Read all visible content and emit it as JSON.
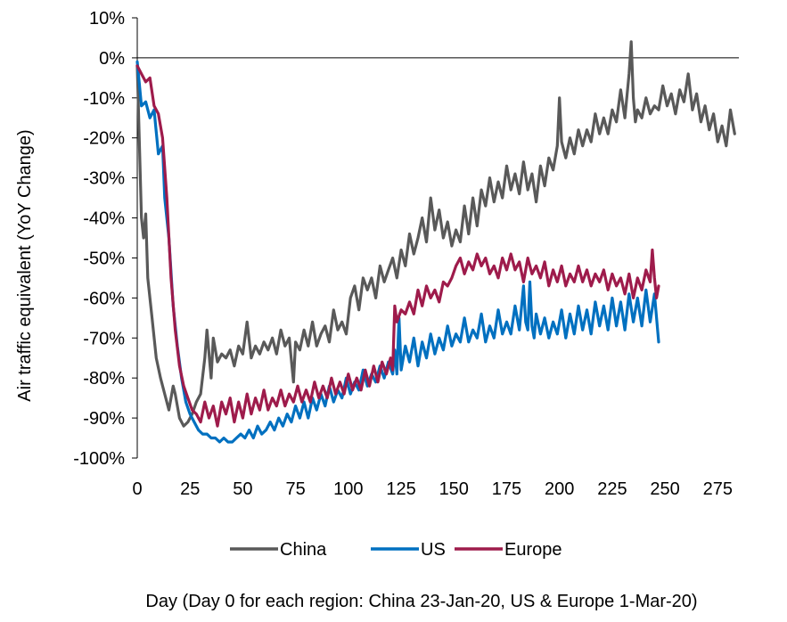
{
  "chart_data": {
    "type": "line",
    "title": "",
    "xlabel": "Day (Day 0 for each region: China 23-Jan-20, US & Europe 1-Mar-20)",
    "ylabel": "Air traffic equivalent  (YoY Change)",
    "xlim": [
      0,
      285
    ],
    "ylim": [
      -100,
      10
    ],
    "x_ticks": [
      0,
      25,
      50,
      75,
      100,
      125,
      150,
      175,
      200,
      225,
      250,
      275
    ],
    "y_ticks": [
      10,
      0,
      -10,
      -20,
      -30,
      -40,
      -50,
      -60,
      -70,
      -80,
      -90,
      -100
    ],
    "y_tick_labels": [
      "10%",
      "0%",
      "-10%",
      "-20%",
      "-30%",
      "-40%",
      "-50%",
      "-60%",
      "-70%",
      "-80%",
      "-90%",
      "-100%"
    ],
    "x_tick_labels": [
      "0",
      "25",
      "50",
      "75",
      "100",
      "125",
      "150",
      "175",
      "200",
      "225",
      "250",
      "275"
    ],
    "grid": false,
    "zero_line": true,
    "legend_position": "bottom",
    "series": [
      {
        "name": "China",
        "color": "#595959",
        "x": [
          0,
          2,
          3,
          4,
          5,
          7,
          9,
          11,
          13,
          15,
          17,
          18,
          20,
          22,
          24,
          26,
          28,
          30,
          32,
          33,
          35,
          36,
          38,
          40,
          42,
          44,
          46,
          48,
          50,
          52,
          54,
          56,
          58,
          60,
          62,
          64,
          66,
          68,
          70,
          72,
          74,
          75,
          77,
          79,
          81,
          83,
          85,
          87,
          89,
          91,
          93,
          95,
          97,
          99,
          101,
          103,
          105,
          107,
          109,
          111,
          113,
          115,
          117,
          119,
          121,
          123,
          125,
          127,
          129,
          131,
          133,
          135,
          137,
          139,
          141,
          143,
          145,
          147,
          149,
          151,
          153,
          155,
          157,
          159,
          161,
          163,
          165,
          167,
          169,
          171,
          173,
          175,
          177,
          179,
          181,
          183,
          185,
          187,
          189,
          191,
          193,
          195,
          197,
          199,
          200,
          201,
          203,
          205,
          207,
          209,
          211,
          213,
          215,
          217,
          219,
          221,
          223,
          225,
          227,
          229,
          231,
          233,
          234,
          235,
          236,
          237,
          239,
          241,
          243,
          245,
          247,
          249,
          251,
          253,
          255,
          257,
          259,
          261,
          263,
          265,
          267,
          269,
          271,
          273,
          275,
          277,
          279,
          281,
          283
        ],
        "values": [
          -2,
          -40,
          -45,
          -39,
          -55,
          -65,
          -75,
          -80,
          -84,
          -88,
          -82,
          -84,
          -90,
          -92,
          -91,
          -89,
          -86,
          -84,
          -75,
          -68,
          -80,
          -70,
          -76,
          -74,
          -75,
          -73,
          -77,
          -72,
          -74,
          -66,
          -75,
          -72,
          -74,
          -71,
          -73,
          -70,
          -74,
          -68,
          -72,
          -70,
          -81,
          -71,
          -73,
          -68,
          -72,
          -66,
          -72,
          -69,
          -67,
          -71,
          -63,
          -68,
          -66,
          -69,
          -60,
          -57,
          -63,
          -55,
          -58,
          -55,
          -60,
          -52,
          -56,
          -53,
          -50,
          -55,
          -48,
          -52,
          -44,
          -49,
          -45,
          -40,
          -46,
          -35,
          -43,
          -38,
          -45,
          -41,
          -47,
          -43,
          -46,
          -37,
          -44,
          -35,
          -42,
          -33,
          -37,
          -30,
          -36,
          -31,
          -35,
          -27,
          -33,
          -29,
          -34,
          -26,
          -33,
          -29,
          -36,
          -27,
          -32,
          -25,
          -28,
          -22,
          -10,
          -21,
          -25,
          -20,
          -24,
          -18,
          -22,
          -18,
          -21,
          -14,
          -19,
          -15,
          -19,
          -13,
          -16,
          -8,
          -15,
          -4,
          4,
          -10,
          -16,
          -13,
          -15,
          -10,
          -14,
          -12,
          -13,
          -7,
          -12,
          -9,
          -14,
          -8,
          -11,
          -4,
          -13,
          -9,
          -16,
          -12,
          -18,
          -14,
          -21,
          -17,
          -22,
          -13,
          -19
        ]
      },
      {
        "name": "US",
        "color": "#0070c0",
        "x": [
          0,
          2,
          4,
          6,
          8,
          10,
          12,
          13,
          15,
          17,
          19,
          21,
          23,
          25,
          27,
          29,
          31,
          33,
          35,
          37,
          39,
          41,
          43,
          45,
          47,
          49,
          51,
          53,
          55,
          57,
          59,
          61,
          63,
          65,
          67,
          69,
          71,
          73,
          75,
          77,
          79,
          81,
          83,
          85,
          87,
          89,
          91,
          93,
          95,
          97,
          99,
          101,
          103,
          105,
          107,
          109,
          111,
          113,
          115,
          117,
          119,
          121,
          122,
          123,
          124,
          125,
          127,
          129,
          131,
          133,
          135,
          137,
          139,
          141,
          143,
          145,
          147,
          149,
          151,
          153,
          155,
          157,
          159,
          161,
          163,
          165,
          167,
          169,
          171,
          173,
          175,
          177,
          179,
          181,
          183,
          184,
          185,
          186,
          187,
          188,
          189,
          191,
          193,
          195,
          197,
          199,
          201,
          203,
          205,
          207,
          209,
          211,
          213,
          215,
          217,
          219,
          221,
          223,
          225,
          227,
          229,
          231,
          233,
          235,
          237,
          239,
          241,
          243,
          245,
          247
        ],
        "values": [
          -1,
          -12,
          -11,
          -15,
          -13,
          -24,
          -22,
          -35,
          -45,
          -62,
          -72,
          -80,
          -86,
          -89,
          -91,
          -93,
          -94,
          -94,
          -95,
          -95,
          -96,
          -95,
          -96,
          -96,
          -95,
          -94,
          -95,
          -93,
          -95,
          -92,
          -94,
          -93,
          -91,
          -93,
          -90,
          -92,
          -89,
          -91,
          -87,
          -90,
          -86,
          -90,
          -85,
          -88,
          -84,
          -87,
          -82,
          -86,
          -83,
          -85,
          -80,
          -84,
          -81,
          -83,
          -78,
          -82,
          -79,
          -81,
          -77,
          -80,
          -76,
          -79,
          -73,
          -79,
          -65,
          -78,
          -72,
          -76,
          -70,
          -77,
          -71,
          -75,
          -69,
          -74,
          -70,
          -73,
          -67,
          -72,
          -69,
          -71,
          -65,
          -71,
          -68,
          -70,
          -64,
          -71,
          -67,
          -70,
          -63,
          -69,
          -66,
          -69,
          -62,
          -68,
          -57,
          -66,
          -68,
          -56,
          -67,
          -70,
          -64,
          -69,
          -65,
          -70,
          -66,
          -69,
          -63,
          -70,
          -64,
          -69,
          -62,
          -68,
          -63,
          -69,
          -61,
          -67,
          -62,
          -68,
          -60,
          -67,
          -61,
          -68,
          -59,
          -66,
          -60,
          -67,
          -58,
          -66,
          -59,
          -71
        ]
      },
      {
        "name": "Europe",
        "color": "#9e1b4b",
        "x": [
          0,
          2,
          4,
          6,
          8,
          10,
          12,
          14,
          16,
          18,
          20,
          22,
          24,
          26,
          28,
          30,
          32,
          34,
          36,
          38,
          40,
          42,
          44,
          46,
          48,
          50,
          52,
          54,
          56,
          58,
          60,
          62,
          64,
          66,
          68,
          70,
          72,
          74,
          76,
          78,
          80,
          82,
          84,
          86,
          88,
          90,
          92,
          94,
          96,
          98,
          100,
          102,
          104,
          106,
          108,
          110,
          112,
          114,
          116,
          118,
          120,
          121,
          122,
          123,
          125,
          127,
          129,
          131,
          133,
          135,
          137,
          139,
          141,
          143,
          145,
          147,
          149,
          151,
          153,
          155,
          157,
          159,
          161,
          163,
          165,
          167,
          169,
          171,
          173,
          175,
          177,
          179,
          181,
          183,
          185,
          187,
          189,
          191,
          193,
          195,
          197,
          199,
          201,
          203,
          205,
          207,
          209,
          211,
          213,
          215,
          217,
          219,
          221,
          223,
          225,
          227,
          229,
          231,
          233,
          235,
          237,
          239,
          241,
          243,
          244,
          245,
          246,
          247
        ],
        "values": [
          -2,
          -4,
          -6,
          -5,
          -12,
          -14,
          -20,
          -35,
          -55,
          -68,
          -77,
          -82,
          -85,
          -88,
          -89,
          -91,
          -86,
          -90,
          -87,
          -92,
          -86,
          -89,
          -85,
          -91,
          -86,
          -90,
          -84,
          -89,
          -85,
          -88,
          -83,
          -88,
          -85,
          -87,
          -83,
          -87,
          -84,
          -86,
          -82,
          -86,
          -83,
          -86,
          -81,
          -85,
          -82,
          -85,
          -80,
          -84,
          -81,
          -84,
          -79,
          -83,
          -80,
          -83,
          -78,
          -82,
          -77,
          -81,
          -76,
          -79,
          -75,
          -78,
          -62,
          -66,
          -63,
          -64,
          -61,
          -64,
          -58,
          -62,
          -57,
          -60,
          -58,
          -61,
          -56,
          -57,
          -55,
          -52,
          -50,
          -54,
          -51,
          -53,
          -49,
          -52,
          -50,
          -54,
          -52,
          -55,
          -50,
          -53,
          -49,
          -53,
          -51,
          -56,
          -50,
          -54,
          -52,
          -55,
          -51,
          -57,
          -53,
          -56,
          -52,
          -57,
          -54,
          -56,
          -52,
          -56,
          -53,
          -57,
          -54,
          -56,
          -53,
          -58,
          -54,
          -57,
          -55,
          -59,
          -54,
          -60,
          -55,
          -58,
          -53,
          -56,
          -48,
          -55,
          -60,
          -57
        ]
      }
    ]
  }
}
